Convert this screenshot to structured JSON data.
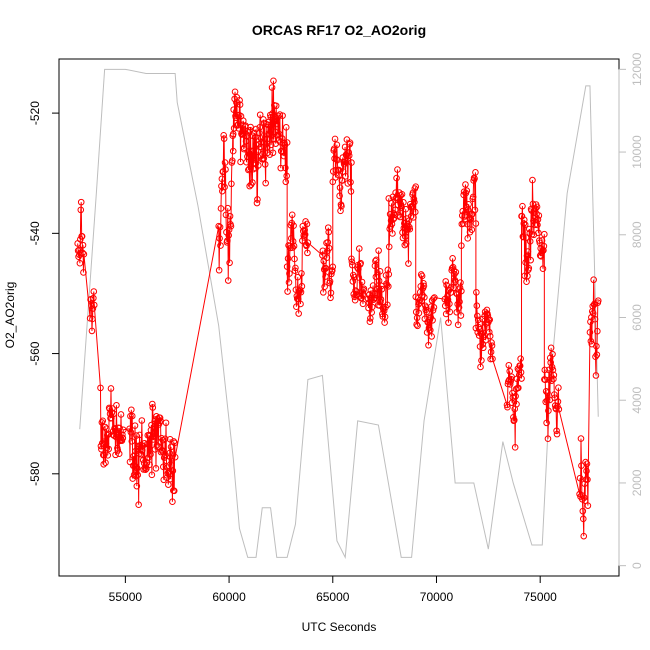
{
  "chart_data": {
    "type": "scatter",
    "title": "ORCAS RF17 O2_AO2orig",
    "xlabel": "UTC Seconds",
    "ylabel": "O2_AO2orig",
    "xlim": [
      51800,
      78800
    ],
    "ylim": [
      -597,
      -511
    ],
    "y2lim": [
      -250,
      12250
    ],
    "x_ticks": [
      55000,
      60000,
      65000,
      70000,
      75000
    ],
    "x_tick_labels": [
      "55000",
      "60000",
      "65000",
      "70000",
      "75000"
    ],
    "y_ticks": [
      -580,
      -560,
      -540,
      -520
    ],
    "y_tick_labels": [
      "-580",
      "-560",
      "-540",
      "-520"
    ],
    "y2_ticks": [
      0,
      2000,
      4000,
      6000,
      8000,
      10000,
      12000
    ],
    "y2_tick_labels": [
      "0",
      "2000",
      "4000",
      "6000",
      "8000",
      "10000",
      "12000"
    ],
    "series": [
      {
        "color": "#ff0000",
        "marker": "open-circle",
        "connected": true,
        "axis": "left",
        "segments": [
          {
            "x0": 52700,
            "x1": 53000,
            "mean": -541,
            "amp": 5,
            "noise": 3
          },
          {
            "x0": 53300,
            "x1": 53500,
            "mean": -552,
            "amp": 3,
            "noise": 2
          },
          {
            "x0": 53800,
            "x1": 54900,
            "mean": -572,
            "amp": 3,
            "noise": 4
          },
          {
            "x0": 55200,
            "x1": 57400,
            "mean": -576,
            "amp": 3,
            "noise": 4
          },
          {
            "x0": 59500,
            "x1": 60200,
            "mean": -535,
            "amp": 8,
            "noise": 4
          },
          {
            "x0": 60200,
            "x1": 62800,
            "mean": -525,
            "amp": 3,
            "noise": 4
          },
          {
            "x0": 62800,
            "x1": 63800,
            "mean": -545,
            "amp": 5,
            "noise": 3
          },
          {
            "x0": 64500,
            "x1": 65000,
            "mean": -545,
            "amp": 3,
            "noise": 3
          },
          {
            "x0": 65000,
            "x1": 65900,
            "mean": -530,
            "amp": 3,
            "noise": 3
          },
          {
            "x0": 65900,
            "x1": 66500,
            "mean": -548,
            "amp": 3,
            "noise": 3
          },
          {
            "x0": 66700,
            "x1": 67700,
            "mean": -550,
            "amp": 3,
            "noise": 3
          },
          {
            "x0": 67700,
            "x1": 69000,
            "mean": -537,
            "amp": 3,
            "noise": 3
          },
          {
            "x0": 69000,
            "x1": 69900,
            "mean": -552,
            "amp": 3,
            "noise": 3
          },
          {
            "x0": 70400,
            "x1": 71200,
            "mean": -549,
            "amp": 3,
            "noise": 3
          },
          {
            "x0": 71200,
            "x1": 71900,
            "mean": -537,
            "amp": 3,
            "noise": 3
          },
          {
            "x0": 71900,
            "x1": 72700,
            "mean": -556,
            "amp": 3,
            "noise": 3
          },
          {
            "x0": 73400,
            "x1": 74100,
            "mean": -567,
            "amp": 4,
            "noise": 3
          },
          {
            "x0": 74100,
            "x1": 75200,
            "mean": -540,
            "amp": 5,
            "noise": 4
          },
          {
            "x0": 75200,
            "x1": 75900,
            "mean": -565,
            "amp": 4,
            "noise": 3
          },
          {
            "x0": 76900,
            "x1": 77300,
            "mean": -583,
            "amp": 4,
            "noise": 3
          },
          {
            "x0": 77400,
            "x1": 77800,
            "mean": -555,
            "amp": 4,
            "noise": 3
          }
        ]
      },
      {
        "color": "#bebebe",
        "marker": "none",
        "connected": true,
        "axis": "right",
        "x": [
          52800,
          53600,
          54000,
          55000,
          56000,
          57400,
          57500,
          58500,
          59500,
          60200,
          60500,
          60900,
          61300,
          61600,
          62000,
          62300,
          62800,
          63200,
          63800,
          64500,
          65200,
          65600,
          66200,
          67200,
          68300,
          68800,
          69400,
          70200,
          70900,
          71800,
          72500,
          73200,
          73700,
          74600,
          75100,
          75500,
          76300,
          77200,
          77400,
          77800
        ],
        "y": [
          3300,
          9000,
          12000,
          12000,
          11900,
          11900,
          11200,
          8700,
          5800,
          2600,
          900,
          200,
          200,
          1400,
          1400,
          200,
          200,
          1000,
          4500,
          4600,
          600,
          200,
          3500,
          3400,
          200,
          200,
          3500,
          6000,
          2000,
          2000,
          400,
          3000,
          2000,
          500,
          500,
          4500,
          9000,
          11600,
          11600,
          3600
        ]
      }
    ],
    "grid": false,
    "legend": "none"
  }
}
